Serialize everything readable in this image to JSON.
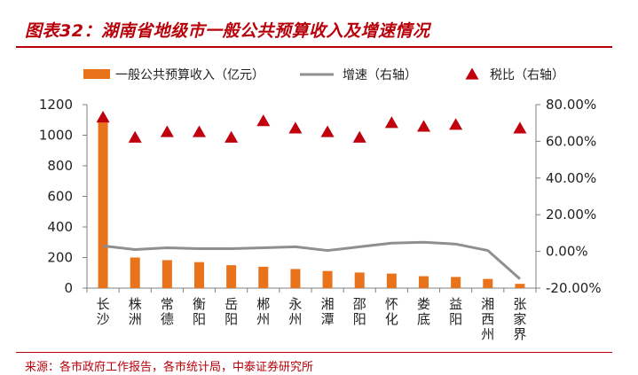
{
  "title": "图表32：湖南省地级市一般公共预算收入及增速情况",
  "source": "来源：各市政府工作报告，各市统计局，中泰证券研究所",
  "colors": {
    "bar": "#e8731a",
    "line": "#8f8f8f",
    "marker": "#c0000d",
    "brand": "#b8000a",
    "axis": "#7f7f7f"
  },
  "chart_data": {
    "type": "bar",
    "categories": [
      "长沙",
      "株洲",
      "常德",
      "衡阳",
      "岳阳",
      "郴州",
      "永州",
      "湘潭",
      "邵阳",
      "怀化",
      "娄底",
      "益阳",
      "湘西州",
      "张家界"
    ],
    "series": [
      {
        "name": "一般公共预算收入（亿元）",
        "type": "bar",
        "axis": "left",
        "values": [
          1100,
          200,
          183,
          170,
          150,
          140,
          125,
          112,
          102,
          95,
          78,
          73,
          60,
          28
        ]
      },
      {
        "name": "增速（右轴）",
        "type": "line",
        "axis": "right",
        "values": [
          3.0,
          1.0,
          2.0,
          1.5,
          1.5,
          2.0,
          2.5,
          0.5,
          2.5,
          4.5,
          5.0,
          4.0,
          0.5,
          -15.0
        ]
      },
      {
        "name": "税比（右轴）",
        "type": "scatter",
        "axis": "right",
        "marker": "triangle",
        "values": [
          73.0,
          62.0,
          65.0,
          65.0,
          62.0,
          71.0,
          67.0,
          65.0,
          62.0,
          70.0,
          68.0,
          69.0,
          null,
          67.0
        ]
      }
    ],
    "y_left": {
      "lim": [
        0,
        1200
      ],
      "ticks": [
        0,
        200,
        400,
        600,
        800,
        1000,
        1200
      ]
    },
    "y_right": {
      "lim": [
        -20,
        80
      ],
      "ticks": [
        -20,
        0,
        20,
        40,
        60,
        80
      ],
      "tick_labels": [
        "-20.00%",
        "0.00%",
        "20.00%",
        "40.00%",
        "60.00%",
        "80.00%"
      ]
    },
    "legend_position": "top",
    "grid": false
  }
}
